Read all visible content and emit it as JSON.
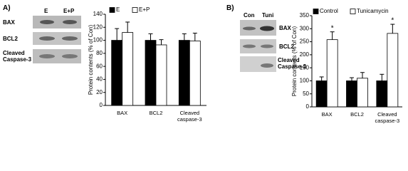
{
  "chart_data": [
    {
      "type": "bar",
      "panel": "A)",
      "blot": {
        "lanes": [
          "E",
          "E+P"
        ],
        "rows": [
          "BAX",
          "BCL2",
          "Cleaved Caspase-3"
        ]
      },
      "y_label": "Protein contents (% of Con)",
      "categories": [
        "BAX",
        "BCL2",
        "Cleaved caspase-3"
      ],
      "series": [
        {
          "name": "E",
          "color": "#000000",
          "values": [
            100,
            100,
            100
          ],
          "errors": [
            18,
            10,
            10
          ]
        },
        {
          "name": "E+P",
          "color": "#ffffff",
          "values": [
            112,
            93,
            99
          ],
          "errors": [
            16,
            8,
            12
          ]
        }
      ],
      "ylim": [
        0,
        140
      ],
      "yticks": [
        0,
        20,
        40,
        60,
        80,
        100,
        120,
        140
      ]
    },
    {
      "type": "bar",
      "panel": "B)",
      "blot": {
        "lanes": [
          "Con",
          "Tuni"
        ],
        "rows": [
          "BAX",
          "BCL2",
          "Cleaved Caspase-3"
        ]
      },
      "y_label": "Protein contents (% of Con)",
      "categories": [
        "BAX",
        "BCL2",
        "Cleaved caspase-3"
      ],
      "series": [
        {
          "name": "Control",
          "color": "#000000",
          "values": [
            100,
            100,
            100
          ],
          "errors": [
            15,
            12,
            25
          ]
        },
        {
          "name": "Tunicamycin",
          "color": "#ffffff",
          "values": [
            258,
            110,
            282
          ],
          "errors": [
            30,
            22,
            35
          ],
          "markers": [
            "*",
            null,
            "*"
          ]
        }
      ],
      "ylim": [
        0,
        350
      ],
      "yticks": [
        0,
        50,
        100,
        150,
        200,
        250,
        300,
        350
      ]
    }
  ]
}
